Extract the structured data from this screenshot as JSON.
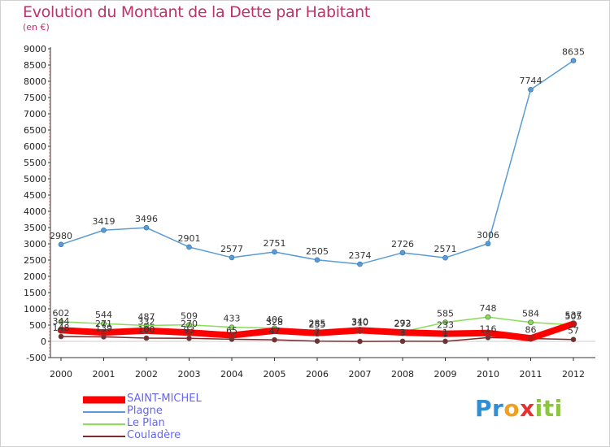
{
  "title": "Evolution du Montant de la Dette par Habitant",
  "subtitle": "(en €)",
  "brand": {
    "letters": [
      "P",
      "r",
      "o",
      "x",
      "i",
      "t",
      "i"
    ],
    "colors": [
      "#2f8fd6",
      "#2f8fd6",
      "#f0a020",
      "#e83030",
      "#8cc63f",
      "#8cc63f",
      "#8cc63f"
    ]
  },
  "chart_data": {
    "type": "line",
    "title": "Evolution du Montant de la Dette par Habitant",
    "subtitle": "(en €)",
    "x": [
      "2000",
      "2001",
      "2002",
      "2003",
      "2004",
      "2005",
      "2006",
      "2007",
      "2008",
      "2009",
      "2010",
      "2011",
      "2012"
    ],
    "ylim": [
      -500,
      9000
    ],
    "yticks": [
      -500,
      0,
      500,
      1000,
      1500,
      2000,
      2500,
      3000,
      3500,
      4000,
      4500,
      5000,
      5500,
      6000,
      6500,
      7000,
      7500,
      8000,
      8500,
      9000
    ],
    "grid": false,
    "legend_position": "bottom-left",
    "series": [
      {
        "name": "SAINT-MICHEL",
        "color": "#ff0000",
        "values": [
          344,
          271,
          332,
          270,
          186,
          328,
          255,
          340,
          273,
          233,
          256,
          94,
          537
        ],
        "labels": [
          "344",
          "271",
          "332",
          "270",
          "",
          "328",
          "255",
          "340",
          "273",
          "233",
          "",
          "",
          "537"
        ],
        "line_width": 8
      },
      {
        "name": "Plagne",
        "color": "#5b9bd5",
        "values": [
          2980,
          3419,
          3496,
          2901,
          2577,
          2751,
          2505,
          2374,
          2726,
          2571,
          3006,
          7744,
          8635
        ],
        "labels": [
          "2980",
          "3419",
          "3496",
          "2901",
          "2577",
          "2751",
          "2505",
          "2374",
          "2726",
          "2571",
          "3006",
          "7744",
          "8635"
        ],
        "line_width": 1.5
      },
      {
        "name": "Le Plan",
        "color": "#88dd55",
        "values": [
          602,
          544,
          487,
          509,
          433,
          406,
          285,
          310,
          292,
          585,
          748,
          584,
          505
        ],
        "labels": [
          "602",
          "544",
          "487",
          "509",
          "433",
          "406",
          "285",
          "310",
          "292",
          "585",
          "748",
          "584",
          "505"
        ],
        "line_width": 1.5
      },
      {
        "name": "Couladère",
        "color": "#7b2b2b",
        "values": [
          148,
          139,
          100,
          93,
          65,
          47,
          7,
          -2,
          3,
          1,
          116,
          86,
          57
        ],
        "labels": [
          "148",
          "139",
          "100",
          "93",
          "65",
          "47",
          "7",
          "",
          "3",
          "1",
          "116",
          "86",
          "57"
        ],
        "line_width": 1.5
      }
    ]
  }
}
